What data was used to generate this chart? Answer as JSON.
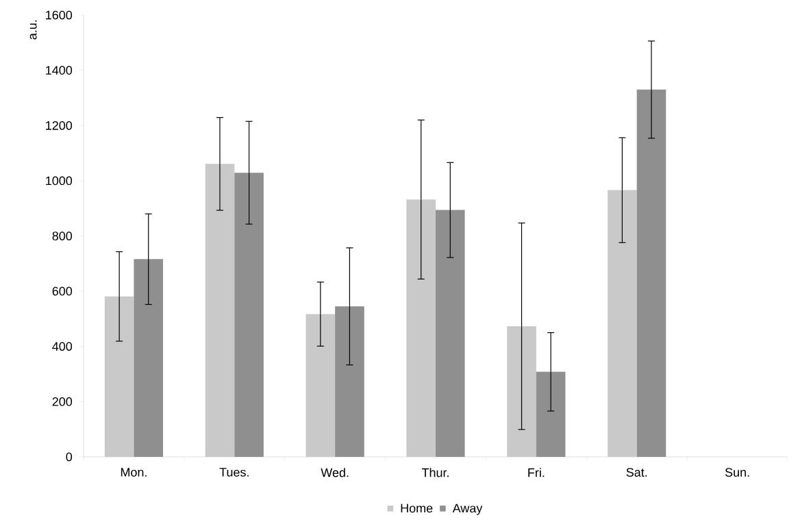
{
  "chart_data": {
    "type": "bar",
    "ylabel": "a.u.",
    "categories": [
      "Mon.",
      "Tues.",
      "Wed.",
      "Thur.",
      "Fri.",
      "Sat.",
      "Sun."
    ],
    "series": [
      {
        "name": "Home",
        "color": "#c9c9c9",
        "values": [
          581,
          1061,
          517,
          932,
          473,
          966,
          0
        ],
        "errors": [
          162,
          168,
          116,
          288,
          374,
          190,
          null
        ]
      },
      {
        "name": "Away",
        "color": "#8f8f8f",
        "values": [
          716,
          1029,
          545,
          894,
          308,
          1330,
          0
        ],
        "errors": [
          164,
          186,
          212,
          172,
          142,
          176,
          null
        ]
      }
    ],
    "ylim": [
      0,
      1600
    ],
    "yticks": [
      0,
      200,
      400,
      600,
      800,
      1000,
      1200,
      1400,
      1600
    ],
    "legend": "bottom"
  }
}
